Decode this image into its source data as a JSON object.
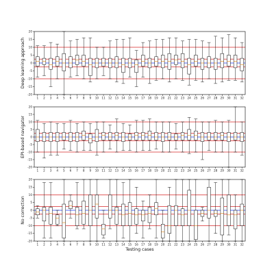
{
  "chart_data": [
    {
      "type": "boxplot",
      "ylabel": "Deep learning approach",
      "xlabel": "",
      "ylim": [
        -20,
        20
      ],
      "yticks": [
        -20,
        -15,
        -10,
        -5,
        0,
        5,
        10,
        15,
        20
      ],
      "categories": [
        "1",
        "2",
        "3",
        "4",
        "5",
        "6",
        "7",
        "8",
        "9",
        "10",
        "11",
        "12",
        "13",
        "14",
        "15",
        "16",
        "17",
        "18",
        "19",
        "20",
        "21",
        "22",
        "23",
        "24",
        "25",
        "26",
        "27",
        "28",
        "29",
        "30",
        "31",
        "32"
      ],
      "reference_lines": [
        {
          "y": 10,
          "color": "#d62728"
        },
        {
          "y": 2.5,
          "color": "#d62728"
        },
        {
          "y": 0,
          "color": "#1f3cff"
        },
        {
          "y": -2.5,
          "color": "#d62728"
        },
        {
          "y": -10,
          "color": "#d62728"
        }
      ],
      "boxes": [
        {
          "lo": -9,
          "q1": -2,
          "med": 1,
          "q3": 4,
          "hi": 11
        },
        {
          "lo": -8,
          "q1": -1,
          "med": 1,
          "q3": 3,
          "hi": 11
        },
        {
          "lo": -15,
          "q1": -4,
          "med": -1,
          "q3": 3,
          "hi": 13
        },
        {
          "lo": -10,
          "q1": -2,
          "med": 1,
          "q3": 4,
          "hi": 12
        },
        {
          "lo": -20,
          "q1": -5,
          "med": 0,
          "q3": 6,
          "hi": 20
        },
        {
          "lo": -9,
          "q1": -3,
          "med": 0,
          "q3": 4,
          "hi": 14
        },
        {
          "lo": -8,
          "q1": -1,
          "med": 2,
          "q3": 5,
          "hi": 15
        },
        {
          "lo": -10,
          "q1": -2,
          "med": 1,
          "q3": 5,
          "hi": 16
        },
        {
          "lo": -12,
          "q1": -8,
          "med": -1,
          "q3": 3,
          "hi": 16
        },
        {
          "lo": -10,
          "q1": -3,
          "med": 0,
          "q3": 3,
          "hi": 10
        },
        {
          "lo": -8,
          "q1": -2,
          "med": 0,
          "q3": 3,
          "hi": 10
        },
        {
          "lo": -10,
          "q1": -3,
          "med": 0,
          "q3": 3,
          "hi": 14
        },
        {
          "lo": -12,
          "q1": -3,
          "med": 0,
          "q3": 4,
          "hi": 15
        },
        {
          "lo": -13,
          "q1": -6,
          "med": -1,
          "q3": 3,
          "hi": 15
        },
        {
          "lo": -9,
          "q1": -3,
          "med": 0,
          "q3": 3,
          "hi": 16
        },
        {
          "lo": -15,
          "q1": -6,
          "med": -1,
          "q3": 2,
          "hi": 8
        },
        {
          "lo": -9,
          "q1": -2,
          "med": 1,
          "q3": 5,
          "hi": 13
        },
        {
          "lo": -13,
          "q1": -3,
          "med": 0,
          "q3": 3,
          "hi": 14
        },
        {
          "lo": -11,
          "q1": -2,
          "med": 1,
          "q3": 4,
          "hi": 15
        },
        {
          "lo": -10,
          "q1": -3,
          "med": 1,
          "q3": 5,
          "hi": 15
        },
        {
          "lo": -12,
          "q1": -4,
          "med": 1,
          "q3": 6,
          "hi": 16
        },
        {
          "lo": -10,
          "q1": -1,
          "med": 2,
          "q3": 5,
          "hi": 16
        },
        {
          "lo": -11,
          "q1": -3,
          "med": 1,
          "q3": 6,
          "hi": 14
        },
        {
          "lo": -14,
          "q1": -7,
          "med": -1,
          "q3": 3,
          "hi": 15
        },
        {
          "lo": -11,
          "q1": -2,
          "med": 1,
          "q3": 5,
          "hi": 15
        },
        {
          "lo": -12,
          "q1": -4,
          "med": 0,
          "q3": 3,
          "hi": 14
        },
        {
          "lo": -10,
          "q1": -3,
          "med": 0,
          "q3": 4,
          "hi": 13
        },
        {
          "lo": -13,
          "q1": -4,
          "med": 0,
          "q3": 3,
          "hi": 17
        },
        {
          "lo": -12,
          "q1": -3,
          "med": 1,
          "q3": 6,
          "hi": 16
        },
        {
          "lo": -11,
          "q1": -2,
          "med": 1,
          "q3": 5,
          "hi": 18
        },
        {
          "lo": -11,
          "q1": -3,
          "med": 1,
          "q3": 5,
          "hi": 16
        },
        {
          "lo": -12,
          "q1": -5,
          "med": -1,
          "q3": 3,
          "hi": 13
        }
      ]
    },
    {
      "type": "boxplot",
      "ylabel": "EPI-based navigator",
      "xlabel": "",
      "ylim": [
        -20,
        20
      ],
      "yticks": [
        -20,
        -15,
        -10,
        -5,
        0,
        5,
        10,
        15,
        20
      ],
      "categories": [
        "1",
        "2",
        "3",
        "4",
        "5",
        "6",
        "7",
        "8",
        "9",
        "10",
        "11",
        "12",
        "13",
        "14",
        "15",
        "16",
        "17",
        "18",
        "19",
        "20",
        "21",
        "22",
        "23",
        "24",
        "25",
        "26",
        "27",
        "28",
        "29",
        "30",
        "31",
        "32"
      ],
      "reference_lines": [
        {
          "y": 10,
          "color": "#d62728"
        },
        {
          "y": 2.5,
          "color": "#d62728"
        },
        {
          "y": 0,
          "color": "#1f3cff"
        },
        {
          "y": -2.5,
          "color": "#d62728"
        },
        {
          "y": -10,
          "color": "#d62728"
        }
      ],
      "boxes": [
        {
          "lo": -10,
          "q1": -3,
          "med": 0,
          "q3": 5,
          "hi": 11
        },
        {
          "lo": -14,
          "q1": -3,
          "med": 0,
          "q3": 3,
          "hi": 9
        },
        {
          "lo": -12,
          "q1": -3,
          "med": 0,
          "q3": 3,
          "hi": 10
        },
        {
          "lo": -12,
          "q1": -3,
          "med": 0,
          "q3": 3,
          "hi": 9
        },
        {
          "lo": -8,
          "q1": -2,
          "med": 0,
          "q3": 3,
          "hi": 9
        },
        {
          "lo": -9,
          "q1": -3,
          "med": 0,
          "q3": 3,
          "hi": 11
        },
        {
          "lo": -10,
          "q1": -3,
          "med": 0,
          "q3": 3,
          "hi": 9
        },
        {
          "lo": -9,
          "q1": -2,
          "med": 1,
          "q3": 4,
          "hi": 10
        },
        {
          "lo": -9,
          "q1": -4,
          "med": -1,
          "q3": 2,
          "hi": 9
        },
        {
          "lo": -12,
          "q1": -3,
          "med": 0,
          "q3": 5,
          "hi": 10
        },
        {
          "lo": -10,
          "q1": -2,
          "med": 1,
          "q3": 3,
          "hi": 10
        },
        {
          "lo": -8,
          "q1": -2,
          "med": 0,
          "q3": 3,
          "hi": 8
        },
        {
          "lo": -10,
          "q1": -2,
          "med": 1,
          "q3": 3,
          "hi": 12
        },
        {
          "lo": -9,
          "q1": -3,
          "med": 0,
          "q3": 3,
          "hi": 9
        },
        {
          "lo": -9,
          "q1": -2,
          "med": 0,
          "q3": 2,
          "hi": 8
        },
        {
          "lo": -10,
          "q1": -2,
          "med": 1,
          "q3": 3,
          "hi": 11
        },
        {
          "lo": -9,
          "q1": -2,
          "med": 1,
          "q3": 3,
          "hi": 11
        },
        {
          "lo": -9,
          "q1": -2,
          "med": 1,
          "q3": 4,
          "hi": 12
        },
        {
          "lo": -8,
          "q1": -2,
          "med": 0,
          "q3": 3,
          "hi": 10
        },
        {
          "lo": -10,
          "q1": -3,
          "med": 0,
          "q3": 3,
          "hi": 10
        },
        {
          "lo": -10,
          "q1": -2,
          "med": 0,
          "q3": 3,
          "hi": 10
        },
        {
          "lo": -8,
          "q1": -2,
          "med": 0,
          "q3": 2,
          "hi": 9
        },
        {
          "lo": -10,
          "q1": -2,
          "med": 1,
          "q3": 3,
          "hi": 10
        },
        {
          "lo": -11,
          "q1": -2,
          "med": 1,
          "q3": 5,
          "hi": 13
        },
        {
          "lo": -10,
          "q1": -2,
          "med": 1,
          "q3": 4,
          "hi": 12
        },
        {
          "lo": -15,
          "q1": -3,
          "med": 0,
          "q3": 3,
          "hi": 10
        },
        {
          "lo": -9,
          "q1": -2,
          "med": 0,
          "q3": 3,
          "hi": 10
        },
        {
          "lo": -10,
          "q1": -2,
          "med": 0,
          "q3": 3,
          "hi": 11
        },
        {
          "lo": -10,
          "q1": -2,
          "med": 1,
          "q3": 3,
          "hi": 10
        },
        {
          "lo": -20,
          "q1": -3,
          "med": 0,
          "q3": 3,
          "hi": 11
        },
        {
          "lo": -10,
          "q1": -2,
          "med": 0,
          "q3": 3,
          "hi": 20
        },
        {
          "lo": -12,
          "q1": -3,
          "med": 0,
          "q3": 3,
          "hi": 10
        }
      ]
    },
    {
      "type": "boxplot",
      "ylabel": "No correction",
      "xlabel": "Testing cases",
      "ylim": [
        -20,
        20
      ],
      "yticks": [
        -20,
        -15,
        -10,
        -5,
        0,
        5,
        10,
        15,
        20
      ],
      "categories": [
        "1",
        "2",
        "3",
        "4",
        "5",
        "6",
        "7",
        "8",
        "9",
        "10",
        "11",
        "12",
        "13",
        "14",
        "15",
        "16",
        "17",
        "18",
        "19",
        "20",
        "21",
        "22",
        "23",
        "24",
        "25",
        "26",
        "27",
        "28",
        "29",
        "30",
        "31",
        "32"
      ],
      "reference_lines": [
        {
          "y": 10,
          "color": "#d62728"
        },
        {
          "y": 2.5,
          "color": "#d62728"
        },
        {
          "y": 0,
          "color": "#1f3cff"
        },
        {
          "y": -2.5,
          "color": "#d62728"
        },
        {
          "y": -10,
          "color": "#d62728"
        }
      ],
      "boxes": [
        {
          "lo": -5,
          "q1": -3,
          "med": -1,
          "q3": 1,
          "hi": 3
        },
        {
          "lo": -18,
          "q1": -7,
          "med": 0,
          "q3": 2,
          "hi": 18
        },
        {
          "lo": -18,
          "q1": -9,
          "med": -2,
          "q3": 2,
          "hi": 18
        },
        {
          "lo": -10,
          "q1": -9,
          "med": -5,
          "q3": -3,
          "hi": 0
        },
        {
          "lo": -20,
          "q1": -18,
          "med": -8,
          "q3": 4,
          "hi": 20
        },
        {
          "lo": -5,
          "q1": 1,
          "med": 3,
          "q3": 6,
          "hi": 10
        },
        {
          "lo": -12,
          "q1": -10,
          "med": -3,
          "q3": 2,
          "hi": 18
        },
        {
          "lo": -12,
          "q1": -9,
          "med": -2,
          "q3": 6,
          "hi": 20
        },
        {
          "lo": -20,
          "q1": -10,
          "med": 0,
          "q3": 10,
          "hi": 20
        },
        {
          "lo": -20,
          "q1": -5,
          "med": 4,
          "q3": 10,
          "hi": 20
        },
        {
          "lo": -18,
          "q1": -16,
          "med": -12,
          "q3": -9,
          "hi": 0
        },
        {
          "lo": -12,
          "q1": -5,
          "med": 0,
          "q3": 10,
          "hi": 20
        },
        {
          "lo": -20,
          "q1": -9,
          "med": 0,
          "q3": 2,
          "hi": 20
        },
        {
          "lo": -18,
          "q1": -10,
          "med": -3,
          "q3": 4,
          "hi": 18
        },
        {
          "lo": -20,
          "q1": -10,
          "med": -2,
          "q3": 5,
          "hi": 20
        },
        {
          "lo": -15,
          "q1": -9,
          "med": -3,
          "q3": 1,
          "hi": 15
        },
        {
          "lo": -18,
          "q1": -7,
          "med": -3,
          "q3": 0,
          "hi": 6
        },
        {
          "lo": -12,
          "q1": -8,
          "med": -2,
          "q3": 2,
          "hi": 10
        },
        {
          "lo": -18,
          "q1": -3,
          "med": 1,
          "q3": 5,
          "hi": 20
        },
        {
          "lo": -20,
          "q1": -18,
          "med": -14,
          "q3": -9,
          "hi": 0
        },
        {
          "lo": -20,
          "q1": -15,
          "med": -10,
          "q3": 3,
          "hi": 15
        },
        {
          "lo": -20,
          "q1": -10,
          "med": 0,
          "q3": 3,
          "hi": 20
        },
        {
          "lo": -20,
          "q1": -10,
          "med": -3,
          "q3": 1,
          "hi": 20
        },
        {
          "lo": -20,
          "q1": -10,
          "med": 0,
          "q3": 13,
          "hi": 20
        },
        {
          "lo": -20,
          "q1": -19,
          "med": -10,
          "q3": 0,
          "hi": 20
        },
        {
          "lo": -7,
          "q1": -4,
          "med": -2,
          "q3": 0,
          "hi": 2
        },
        {
          "lo": -20,
          "q1": -5,
          "med": 0,
          "q3": 15,
          "hi": 20
        },
        {
          "lo": -15,
          "q1": -4,
          "med": -2,
          "q3": 0,
          "hi": 18
        },
        {
          "lo": -20,
          "q1": -16,
          "med": -2,
          "q3": 8,
          "hi": 20
        },
        {
          "lo": -16,
          "q1": -10,
          "med": -3,
          "q3": 10,
          "hi": 20
        },
        {
          "lo": -20,
          "q1": -12,
          "med": -3,
          "q3": 0,
          "hi": 10
        },
        {
          "lo": -20,
          "q1": -10,
          "med": 0,
          "q3": 4,
          "hi": 20
        }
      ]
    }
  ]
}
